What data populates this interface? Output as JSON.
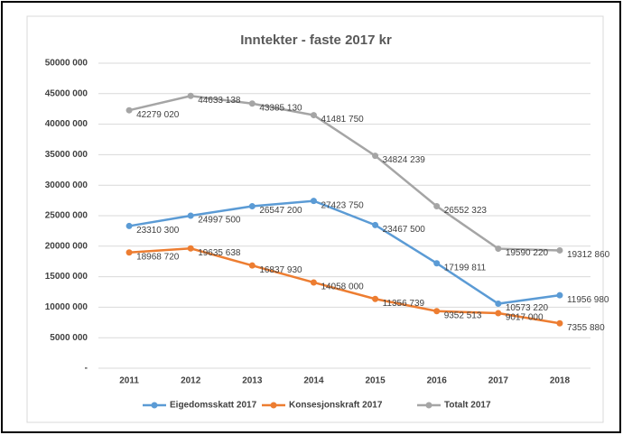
{
  "chart_data": {
    "type": "line",
    "title": "Inntekter - faste 2017 kr",
    "categories": [
      "2011",
      "2012",
      "2013",
      "2014",
      "2015",
      "2016",
      "2017",
      "2018"
    ],
    "series": [
      {
        "name": "Eigedomsskatt 2017",
        "color": "#5b9bd5",
        "values": [
          23310300,
          24997500,
          26547200,
          27423750,
          23467500,
          17199811,
          10573220,
          11956980
        ],
        "value_labels": [
          "23310 300",
          "24997 500",
          "26547 200",
          "27423 750",
          "23467 500",
          "17199 811",
          "10573 220",
          "11956 980"
        ]
      },
      {
        "name": "Konsesjonskraft 2017",
        "color": "#ed7d31",
        "values": [
          18968720,
          19635638,
          16837930,
          14058000,
          11356739,
          9352513,
          9017000,
          7355880
        ],
        "value_labels": [
          "18968 720",
          "19635 638",
          "16837 930",
          "14058 000",
          "11356 739",
          "9352 513",
          "9017 000",
          "7355 880"
        ]
      },
      {
        "name": "Totalt 2017",
        "color": "#a5a5a5",
        "values": [
          42279020,
          44633138,
          43385130,
          41481750,
          34824239,
          26552323,
          19590220,
          19312860
        ],
        "value_labels": [
          "42279 020",
          "44633 138",
          "43385 130",
          "41481 750",
          "34824 239",
          "26552 323",
          "19590 220",
          "19312 860"
        ]
      }
    ],
    "ylim": [
      0,
      50000000
    ],
    "yticks": [
      {
        "value": 0,
        "label": "-"
      },
      {
        "value": 5000000,
        "label": "5000 000"
      },
      {
        "value": 10000000,
        "label": "10000 000"
      },
      {
        "value": 15000000,
        "label": "15000 000"
      },
      {
        "value": 20000000,
        "label": "20000 000"
      },
      {
        "value": 25000000,
        "label": "25000 000"
      },
      {
        "value": 30000000,
        "label": "30000 000"
      },
      {
        "value": 35000000,
        "label": "35000 000"
      },
      {
        "value": 40000000,
        "label": "40000 000"
      },
      {
        "value": 45000000,
        "label": "45000 000"
      },
      {
        "value": 50000000,
        "label": "50000 000"
      }
    ],
    "grid": true,
    "legend": "bottom"
  }
}
